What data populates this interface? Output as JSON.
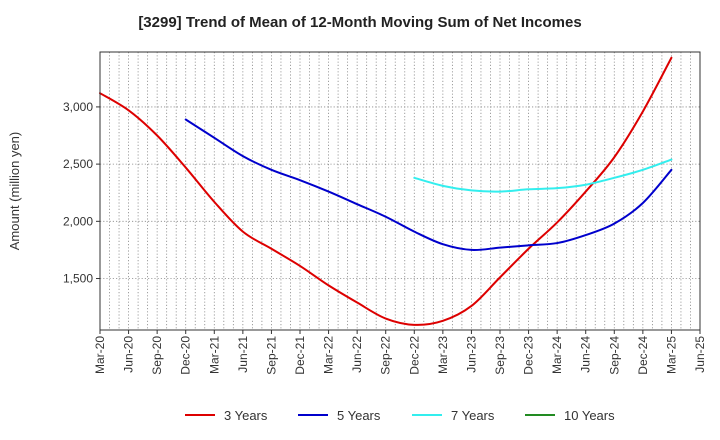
{
  "chart_data": {
    "type": "line",
    "title": "[3299]  Trend of Mean of 12-Month Moving Sum of Net Incomes",
    "ylabel": "Amount (million yen)",
    "xlabel": "",
    "x_ticks": [
      "Mar-20",
      "Jun-20",
      "Sep-20",
      "Dec-20",
      "Mar-21",
      "Jun-21",
      "Sep-21",
      "Dec-21",
      "Mar-22",
      "Jun-22",
      "Sep-22",
      "Dec-22",
      "Mar-23",
      "Jun-23",
      "Sep-23",
      "Dec-23",
      "Mar-24",
      "Jun-24",
      "Sep-24",
      "Dec-24",
      "Mar-25",
      "Jun-25"
    ],
    "y_ticks": [
      1500,
      2000,
      2500,
      3000
    ],
    "ylim": [
      1050,
      3480
    ],
    "grid": true,
    "legend_position": "bottom",
    "series": [
      {
        "name": "3 Years",
        "color": "#dd0000",
        "x": [
          "Mar-20",
          "Jun-20",
          "Sep-20",
          "Dec-20",
          "Mar-21",
          "Jun-21",
          "Sep-21",
          "Dec-21",
          "Mar-22",
          "Jun-22",
          "Sep-22",
          "Dec-22",
          "Mar-23",
          "Jun-23",
          "Sep-23",
          "Dec-23",
          "Mar-24",
          "Jun-24",
          "Sep-24",
          "Dec-24",
          "Mar-25"
        ],
        "values": [
          3120,
          2970,
          2750,
          2470,
          2170,
          1910,
          1760,
          1610,
          1440,
          1290,
          1150,
          1095,
          1130,
          1260,
          1510,
          1760,
          1990,
          2260,
          2560,
          2960,
          3430
        ]
      },
      {
        "name": "5 Years",
        "color": "#0000cc",
        "x": [
          "Dec-20",
          "Mar-21",
          "Jun-21",
          "Sep-21",
          "Dec-21",
          "Mar-22",
          "Jun-22",
          "Sep-22",
          "Dec-22",
          "Mar-23",
          "Jun-23",
          "Sep-23",
          "Dec-23",
          "Mar-24",
          "Jun-24",
          "Sep-24",
          "Dec-24",
          "Mar-25"
        ],
        "values": [
          2890,
          2730,
          2570,
          2450,
          2360,
          2260,
          2150,
          2040,
          1910,
          1800,
          1750,
          1770,
          1790,
          1810,
          1880,
          1980,
          2160,
          2450
        ]
      },
      {
        "name": "7 Years",
        "color": "#33eeee",
        "x": [
          "Dec-22",
          "Mar-23",
          "Jun-23",
          "Sep-23",
          "Dec-23",
          "Mar-24",
          "Jun-24",
          "Sep-24",
          "Dec-24",
          "Mar-25"
        ],
        "values": [
          2380,
          2310,
          2270,
          2260,
          2280,
          2290,
          2320,
          2380,
          2450,
          2540
        ]
      },
      {
        "name": "10 Years",
        "color": "#228b22",
        "x": [],
        "values": []
      }
    ]
  }
}
